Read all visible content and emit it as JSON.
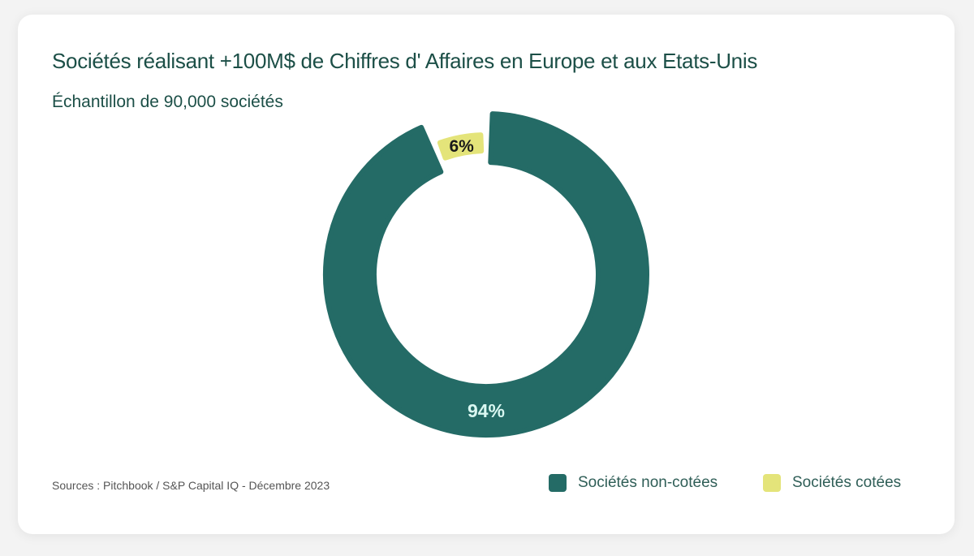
{
  "colors": {
    "non_cotees": "#246b66",
    "cotees": "#e4e47a",
    "label_on_dark": "#d9f7f1",
    "label_on_light": "#1a1a1a"
  },
  "header": {
    "title": "Sociétés réalisant +100M$ de Chiffres d' Affaires en Europe et aux Etats-Unis",
    "subtitle": "Échantillon de 90,000 sociétés"
  },
  "footer": {
    "source": "Sources : Pitchbook  / S&P Capital IQ - Décembre 2023"
  },
  "legend": {
    "position": "bottom-right",
    "items": [
      {
        "label": "Sociétés non-cotées",
        "color": "#246b66"
      },
      {
        "label": "Sociétés cotées",
        "color": "#e4e47a"
      }
    ]
  },
  "chart_data": {
    "type": "pie",
    "variant": "donut",
    "title": "Sociétés réalisant +100M$ de Chiffres d' Affaires en Europe et aux Etats-Unis",
    "subtitle": "Échantillon de 90,000 sociétés",
    "categories": [
      "Sociétés non-cotées",
      "Sociétés cotées"
    ],
    "values": [
      94,
      6
    ],
    "labels": [
      "94%",
      "6%"
    ],
    "unit": "%",
    "highlight": "Sociétés cotées"
  }
}
